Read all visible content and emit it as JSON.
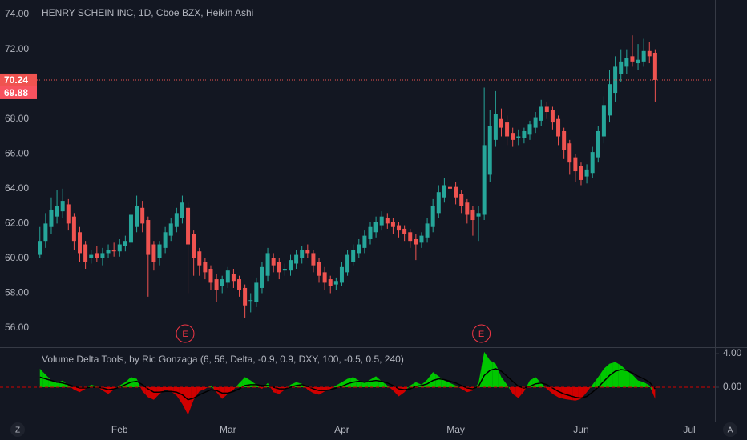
{
  "chart_data": [
    {
      "type": "candlestick",
      "title": "HENRY SCHEIN INC, 1D, Cboe BZX, Heikin Ashi",
      "up_color": "#26a69a",
      "down_color": "#ef5350",
      "open": [
        60.2,
        61.0,
        61.8,
        62.4,
        62.7,
        63.1,
        62.4,
        61.5,
        60.8,
        60.0,
        60.3,
        60.0,
        60.3,
        60.5,
        60.4,
        60.7,
        60.9,
        61.8,
        62.9,
        62.2,
        60.8,
        60.0,
        60.6,
        61.3,
        61.8,
        62.3,
        62.9,
        61.4,
        60.4,
        59.8,
        59.4,
        58.8,
        58.4,
        58.6,
        59.1,
        58.8,
        58.3,
        57.6,
        57.5,
        58.3,
        59.0,
        60.0,
        59.8,
        59.3,
        59.3,
        59.7,
        60.0,
        60.5,
        60.3,
        59.8,
        59.2,
        58.8,
        58.5,
        58.6,
        59.2,
        59.8,
        60.3,
        60.6,
        61.1,
        61.5,
        61.9,
        62.3,
        62.1,
        61.9,
        61.7,
        61.5,
        61.1,
        60.9,
        61.2,
        61.8,
        62.6,
        63.5,
        64.1,
        64.1,
        63.7,
        63.2,
        62.8,
        62.4,
        62.5,
        64.8,
        66.8,
        68.0,
        67.8,
        67.2,
        66.9,
        66.9,
        67.1,
        67.5,
        67.9,
        68.7,
        68.5,
        68.0,
        67.3,
        66.6,
        65.8,
        65.3,
        64.7,
        64.9,
        65.8,
        67.0,
        68.2,
        69.5,
        70.6,
        71.0,
        71.6,
        71.2,
        71.3,
        71.9,
        71.8
      ],
      "high": [
        61.8,
        62.6,
        63.5,
        63.9,
        64.0,
        63.4,
        62.6,
        61.8,
        61.0,
        60.5,
        60.7,
        60.6,
        60.8,
        60.9,
        61.1,
        61.3,
        62.8,
        63.6,
        63.3,
        62.4,
        61.0,
        61.0,
        61.8,
        62.3,
        62.9,
        63.6,
        63.2,
        61.6,
        60.6,
        60.0,
        59.6,
        59.1,
        59.0,
        59.5,
        59.4,
        59.0,
        58.5,
        58.0,
        58.9,
        59.8,
        60.6,
        60.3,
        60.0,
        59.7,
        60.2,
        60.5,
        60.7,
        60.8,
        60.5,
        60.0,
        59.5,
        59.0,
        58.9,
        59.8,
        60.5,
        60.8,
        61.1,
        61.6,
        62.1,
        62.4,
        62.7,
        62.6,
        62.3,
        62.1,
        61.9,
        61.7,
        61.4,
        61.5,
        62.3,
        63.4,
        64.2,
        64.6,
        64.7,
        64.4,
        63.9,
        63.4,
        63.0,
        63.0,
        69.8,
        68.5,
        69.6,
        68.6,
        68.2,
        67.5,
        67.4,
        67.5,
        67.9,
        68.4,
        69.1,
        69.0,
        68.7,
        68.2,
        67.5,
        66.8,
        66.0,
        65.5,
        65.4,
        66.4,
        67.6,
        69.3,
        70.8,
        71.6,
        72.0,
        72.0,
        72.8,
        72.3,
        72.6,
        72.4,
        72.0
      ],
      "low": [
        60.0,
        60.6,
        61.4,
        62.0,
        62.3,
        61.6,
        60.5,
        59.8,
        59.4,
        59.7,
        59.8,
        59.6,
        60.0,
        60.1,
        60.1,
        60.4,
        60.6,
        61.5,
        61.5,
        57.8,
        59.3,
        59.6,
        60.3,
        61.0,
        61.5,
        62.0,
        58.0,
        59.0,
        59.0,
        58.8,
        58.2,
        57.5,
        58.0,
        58.3,
        58.3,
        57.8,
        56.6,
        56.9,
        57.2,
        58.0,
        58.7,
        59.2,
        58.8,
        59.0,
        59.0,
        59.4,
        59.7,
        60.0,
        59.2,
        58.6,
        58.2,
        58.0,
        58.2,
        58.4,
        59.0,
        59.6,
        60.0,
        60.3,
        60.8,
        61.2,
        61.6,
        61.7,
        61.4,
        61.2,
        61.0,
        60.6,
        59.9,
        60.6,
        60.9,
        61.5,
        62.3,
        63.2,
        63.6,
        63.1,
        62.6,
        62.0,
        61.3,
        61.0,
        62.2,
        64.4,
        66.4,
        67.0,
        66.5,
        66.4,
        66.5,
        66.6,
        66.8,
        67.2,
        67.6,
        68.0,
        67.4,
        66.5,
        65.7,
        64.8,
        64.4,
        64.2,
        64.3,
        64.6,
        65.5,
        66.6,
        67.8,
        69.0,
        70.1,
        70.6,
        71.0,
        70.8,
        71.0,
        71.2,
        69.0
      ],
      "close": [
        61.0,
        62.0,
        62.8,
        63.0,
        63.3,
        62.0,
        61.0,
        60.3,
        59.8,
        60.2,
        60.0,
        60.3,
        60.5,
        60.4,
        60.8,
        61.0,
        62.5,
        63.0,
        62.0,
        60.2,
        59.8,
        60.8,
        61.5,
        62.0,
        62.6,
        63.2,
        60.8,
        60.0,
        59.6,
        59.2,
        58.6,
        58.2,
        58.8,
        59.3,
        58.7,
        58.2,
        57.3,
        57.6,
        58.6,
        59.5,
        60.3,
        59.6,
        59.2,
        59.4,
        59.9,
        60.2,
        60.5,
        60.3,
        59.6,
        59.0,
        58.6,
        58.4,
        58.7,
        59.5,
        60.2,
        60.5,
        60.8,
        61.3,
        61.8,
        62.1,
        62.4,
        62.0,
        61.8,
        61.6,
        61.4,
        61.0,
        60.8,
        61.3,
        62.0,
        63.0,
        63.8,
        64.2,
        64.0,
        63.5,
        63.0,
        62.5,
        62.2,
        62.6,
        66.5,
        67.6,
        68.3,
        67.5,
        67.0,
        66.8,
        67.0,
        67.3,
        67.7,
        68.1,
        68.7,
        68.4,
        67.8,
        67.0,
        66.2,
        65.5,
        65.0,
        64.5,
        65.1,
        66.1,
        67.3,
        68.8,
        70.0,
        71.0,
        71.3,
        71.5,
        71.3,
        71.4,
        71.9,
        71.6,
        70.24
      ],
      "xlim": [
        -7,
        118.5
      ],
      "xticks": [
        {
          "value": 14,
          "label": "Feb"
        },
        {
          "value": 33,
          "label": "Mar"
        },
        {
          "value": 53,
          "label": "Apr"
        },
        {
          "value": 73,
          "label": "May"
        },
        {
          "value": 95,
          "label": "Jun"
        },
        {
          "value": 114,
          "label": "Jul"
        }
      ],
      "ylim": [
        54.9,
        74.83
      ],
      "yticks": [
        {
          "value": 56,
          "label": "56.00"
        },
        {
          "value": 58,
          "label": "58.00"
        },
        {
          "value": 60,
          "label": "60.00"
        },
        {
          "value": 62,
          "label": "62.00"
        },
        {
          "value": 64,
          "label": "64.00"
        },
        {
          "value": 66,
          "label": "66.00"
        },
        {
          "value": 68,
          "label": "68.00"
        },
        {
          "value": 70,
          "label": "70.00"
        },
        {
          "value": 72,
          "label": "72.00"
        },
        {
          "value": 74,
          "label": "74.00"
        }
      ],
      "grid": false,
      "last_price": {
        "value": 70.24,
        "label": "70.24"
      },
      "price_marker": {
        "value": 69.88,
        "label": "69.88"
      },
      "events": [
        {
          "x": 25.5,
          "label": "E"
        },
        {
          "x": 77.5,
          "label": "E"
        }
      ]
    },
    {
      "type": "area",
      "title": "Volume Delta Tools, by Ric Gonzaga (6, 56, Delta, -0.9, 0.9, DXY, 100, -0.5, 0.5, 240)",
      "xlim": [
        -7,
        118.5
      ],
      "ylim": [
        -4.1,
        4.67
      ],
      "yticks": [
        {
          "value": 0,
          "label": "0.00"
        },
        {
          "value": 4,
          "label": "4.00"
        }
      ],
      "series": [
        {
          "positive_color": "#00c800",
          "negative_color": "#d00000",
          "values": [
            2.2,
            1.5,
            0.8,
            0.5,
            0.8,
            0.2,
            -0.3,
            -0.6,
            -0.2,
            0.3,
            0.1,
            -0.4,
            -0.8,
            -0.3,
            0.2,
            0.6,
            1.2,
            1.0,
            -0.5,
            -1.2,
            -1.5,
            -0.8,
            -0.3,
            -0.5,
            -1.0,
            -2.0,
            -3.3,
            -1.5,
            -0.5,
            -0.2,
            0.2,
            -0.6,
            -1.4,
            -0.8,
            -0.3,
            0.5,
            1.2,
            0.8,
            0.3,
            -0.2,
            0.5,
            -0.6,
            -0.8,
            -0.3,
            0.3,
            0.6,
            0.4,
            -0.3,
            -0.7,
            -0.9,
            -0.5,
            -0.2,
            0.2,
            0.6,
            1.0,
            1.2,
            0.8,
            0.5,
            0.9,
            1.3,
            0.7,
            0.2,
            -0.4,
            -1.1,
            -0.6,
            0.2,
            0.6,
            0.3,
            0.9,
            1.8,
            1.3,
            0.8,
            0.5,
            0.2,
            -0.2,
            -0.6,
            -0.4,
            0.5,
            4.2,
            3.2,
            2.8,
            1.2,
            0.3,
            -0.8,
            -1.3,
            -0.5,
            0.8,
            1.2,
            0.5,
            -0.2,
            -0.8,
            -1.2,
            -1.4,
            -1.5,
            -1.6,
            -1.4,
            -0.6,
            0.3,
            1.2,
            2.2,
            2.8,
            3.0,
            2.6,
            2.0,
            1.5,
            0.8,
            0.6,
            0.2,
            -1.4
          ]
        },
        {
          "color": "#000000",
          "values": [
            1.2,
            1.0,
            0.8,
            0.6,
            0.5,
            0.3,
            0.1,
            -0.1,
            -0.1,
            0.0,
            0.0,
            -0.1,
            -0.3,
            -0.2,
            0.0,
            0.3,
            0.6,
            0.7,
            0.3,
            -0.2,
            -0.6,
            -0.6,
            -0.5,
            -0.5,
            -0.6,
            -0.9,
            -1.5,
            -1.3,
            -0.9,
            -0.6,
            -0.3,
            -0.4,
            -0.7,
            -0.7,
            -0.5,
            -0.2,
            0.2,
            0.3,
            0.3,
            0.2,
            0.2,
            0.0,
            -0.2,
            -0.2,
            0.0,
            0.2,
            0.3,
            0.1,
            -0.2,
            -0.4,
            -0.4,
            -0.3,
            -0.1,
            0.1,
            0.4,
            0.6,
            0.7,
            0.6,
            0.7,
            0.8,
            0.7,
            0.5,
            0.2,
            -0.2,
            -0.3,
            -0.2,
            0.1,
            0.2,
            0.4,
            0.8,
            1.0,
            0.9,
            0.7,
            0.5,
            0.2,
            -0.1,
            -0.2,
            0.1,
            1.4,
            2.0,
            2.2,
            1.9,
            1.3,
            0.7,
            0.1,
            -0.1,
            0.1,
            0.4,
            0.5,
            0.3,
            -0.1,
            -0.5,
            -0.8,
            -1.0,
            -1.2,
            -1.3,
            -1.1,
            -0.6,
            0.0,
            0.7,
            1.4,
            1.9,
            2.1,
            2.0,
            1.7,
            1.3,
            1.0,
            0.6,
            -0.2
          ]
        }
      ]
    }
  ],
  "ui": {
    "zoom_icon": "Z",
    "auto_icon": "A"
  }
}
